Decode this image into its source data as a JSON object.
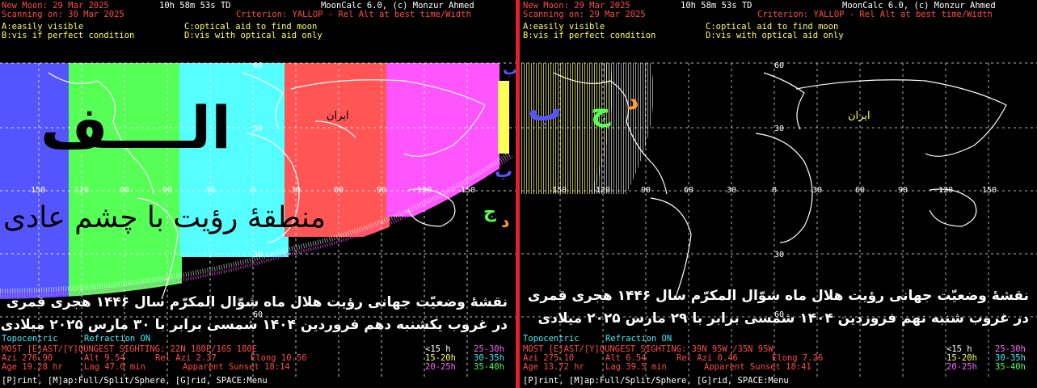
{
  "colors": {
    "red": "#ff4a4a",
    "yellow": "#ffff55",
    "cyan": "#3cf0ff",
    "green": "#55ff55",
    "magenta": "#ff66ff",
    "orange": "#ff9c2a",
    "divider": "#e0202a"
  },
  "left": {
    "new_moon": "New Moon: 29 Mar 2025",
    "time": "10h 58m 53s TD",
    "app": "MoonCalc 6.0, (c) Monzur Ahmed",
    "scanning": "Scanning on: 30 Mar 2025",
    "criterion": "Criterion: YALLOP - Rel Alt at best time/Width",
    "legend_a": "A:easily visible",
    "legend_c": "C:optical aid to find moon",
    "legend_b": "B:vis if perfect condition",
    "legend_d": "D:vis with optical aid only",
    "zone_title": "الــــف",
    "zone_subtitle": "منطقهٔ رؤیت با چشم عادی",
    "iran": "ایران",
    "caption1": "نقشهٔ وضعیّت جهانی رؤیت هلال ماه شوّال المکرّم سال ۱۴۴۶ هجری قمری",
    "caption2": "در غروب یکشنبه دهم فروردین ۱۴۰۴ شمسی برابر با ۳۰ مارس ۲۰۲۵ میلادی",
    "topo": "Topocentric",
    "refraction": "Refraction ON",
    "sighting": "MOST [E]AST/[Y]OUNGEST SIGHTING: 22N 180E/16S 180E",
    "azi": "Azi 276.90",
    "alt": "Alt 9.54",
    "relazi": "Rel Azi 2.37",
    "elong": "Elong 10.56",
    "age": "Age 19.28 hr",
    "lag": "Lag 47.0 min",
    "sunset": "Apparent Sunset 18:14",
    "k1": "<15 h",
    "k2": "25-30h",
    "k3": "15-20h",
    "k4": "30-35h",
    "k5": "20-25h",
    "k6": "35-40h",
    "menu": "[P]rint, [M]ap:Full/Split/Sphere, [G]rid, SPACE:Menu",
    "lon_labels": [
      "150",
      "120",
      "90",
      "60",
      "30",
      "0",
      "30",
      "60",
      "90",
      "120",
      "150"
    ],
    "lat_labels": [
      "60",
      "30",
      "30",
      "60"
    ],
    "marks": {
      "b1": "ب",
      "b2": "ب",
      "j": "ج",
      "d": "د"
    }
  },
  "right": {
    "new_moon": "New Moon: 29 Mar 2025",
    "time": "10h 58m 53s TD",
    "app": "MoonCalc 6.0, (c) Monzur Ahmed",
    "scanning": "Scanning on: 29 Mar 2025",
    "criterion": "Criterion: YALLOP - Rel Alt at best time/Width",
    "legend_a": "A:easily visible",
    "legend_c": "C:optical aid to find moon",
    "legend_b": "B:vis if perfect condition",
    "legend_d": "D:vis with optical aid only",
    "iran": "ایران",
    "caption1": "نقشهٔ وضعیّت جهانی رؤیت هلال ماه شوّال المکرّم سال ۱۴۴۶ هجری قمری",
    "caption2": "در غروب شنبه نهم فروردین ۱۴۰۴ شمسی برابر با ۲۹ مارس ۲۰۲۵ میلادی",
    "topo": "Topocentric",
    "refraction": "Refraction ON",
    "sighting": "MOST [E]AST/[Y]OUNGEST SIGHTING: 39N 95W /35N 95W",
    "azi": "Azi 275.10",
    "alt": "Alt 6.54",
    "relazi": "Rel Azi 0.46",
    "elong": "Elong 7.26",
    "age": "Age 13.72 hr",
    "lag": "Lag 39.5 min",
    "sunset": "Apparent Sunset 18:41",
    "k1": "<15 h",
    "k2": "25-30h",
    "k3": "15-20h",
    "k4": "30-35h",
    "k5": "20-25h",
    "k6": "35-40h",
    "menu": "[P]rint, [M]ap:Full/Split/Sphere, [G]rid, SPACE:Menu",
    "lon_labels": [
      "150",
      "120",
      "90",
      "60",
      "30",
      "0",
      "30",
      "60",
      "90",
      "120",
      "150"
    ],
    "lat_labels": [
      "60",
      "30",
      "30",
      "60"
    ],
    "marks": {
      "b": "ب",
      "j": "ج",
      "d": "د"
    }
  }
}
